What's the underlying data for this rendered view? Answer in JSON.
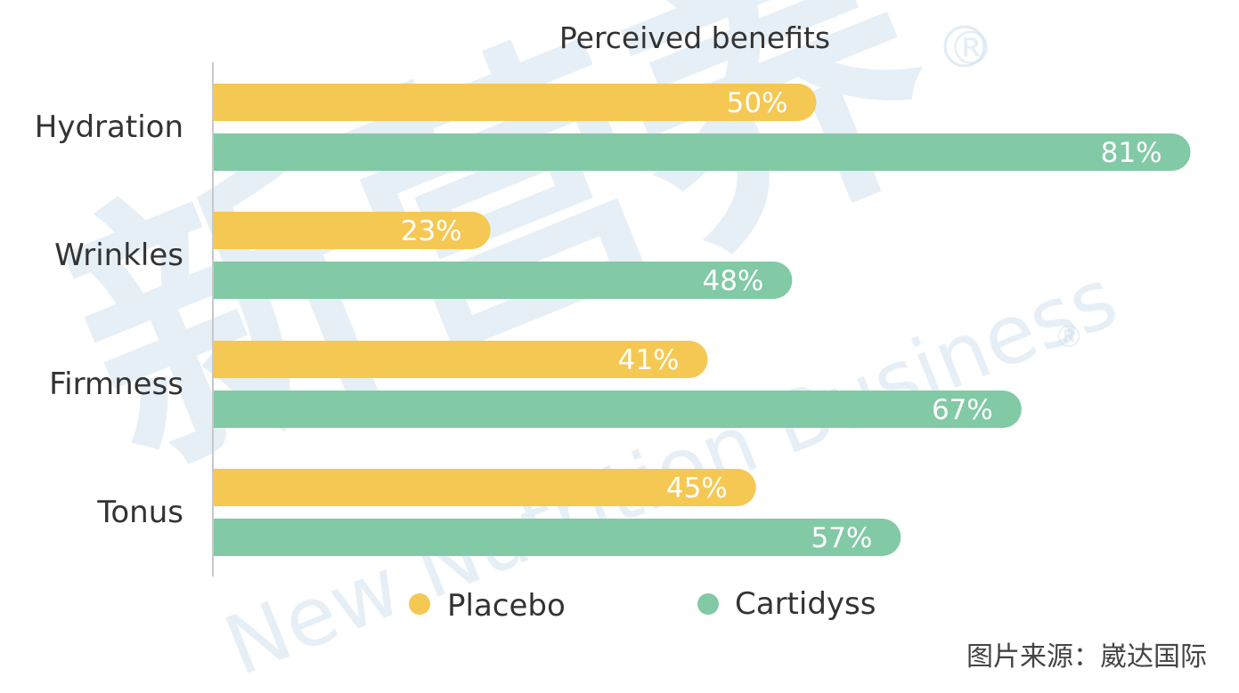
{
  "source_note": "图片来源：崴达国际",
  "watermark": {
    "logo_text": "新营养",
    "brand_text": "New Nutrition Business",
    "mark": "®"
  },
  "colors": {
    "placebo": "#f5c853",
    "cartidyss": "#82c9a6",
    "axis": "#c8c8c8",
    "text": "#333333"
  },
  "chart_data": {
    "type": "bar",
    "orientation": "horizontal",
    "title": "Perceived benefits",
    "categories": [
      "Hydration",
      "Wrinkles",
      "Firmness",
      "Tonus"
    ],
    "series": [
      {
        "name": "Placebo",
        "values": [
          50,
          23,
          41,
          45
        ],
        "labels": [
          "50%",
          "23%",
          "41%",
          "45%"
        ],
        "color": "#f5c853"
      },
      {
        "name": "Cartidyss",
        "values": [
          81,
          48,
          67,
          57
        ],
        "labels": [
          "81%",
          "48%",
          "67%",
          "57%"
        ],
        "color": "#82c9a6"
      }
    ],
    "xlim": [
      0,
      81
    ],
    "unit": "%",
    "legend": "bottom-center",
    "grid": false
  }
}
